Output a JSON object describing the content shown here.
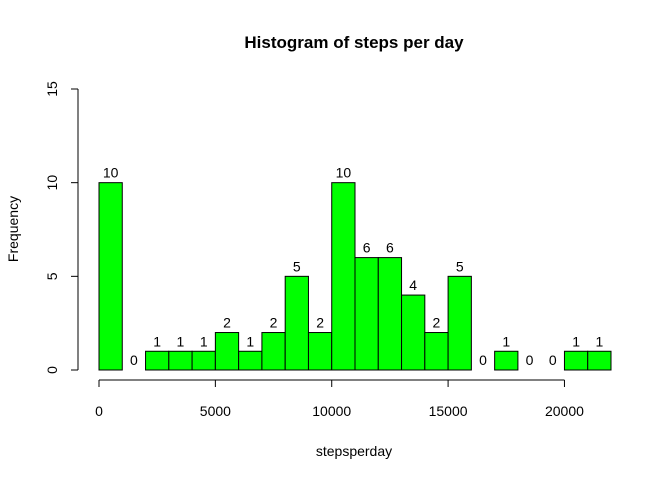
{
  "chart_data": {
    "type": "bar",
    "title": "Histogram of steps per day",
    "xlabel": "stepsperday",
    "ylabel": "Frequency",
    "bin_width": 1000,
    "bin_start": 0,
    "values": [
      10,
      0,
      1,
      1,
      1,
      2,
      1,
      2,
      5,
      2,
      10,
      6,
      6,
      4,
      2,
      5,
      0,
      1,
      0,
      0,
      1,
      1
    ],
    "value_labels": [
      "10",
      "0",
      "1",
      "1",
      "1",
      "2",
      "1",
      "2",
      "5",
      "2",
      "10",
      "6",
      "6",
      "4",
      "2",
      "5",
      "0",
      "1",
      "0",
      "0",
      "1",
      "1"
    ],
    "xlim": [
      0,
      22000
    ],
    "ylim": [
      0,
      15
    ],
    "x_ticks": [
      0,
      5000,
      10000,
      15000,
      20000
    ],
    "x_tick_labels": [
      "0",
      "5000",
      "10000",
      "15000",
      "20000"
    ],
    "y_ticks": [
      0,
      5,
      10,
      15
    ],
    "y_tick_labels": [
      "0",
      "5",
      "10",
      "15"
    ],
    "bar_color": "#00FF00",
    "grid": false
  }
}
